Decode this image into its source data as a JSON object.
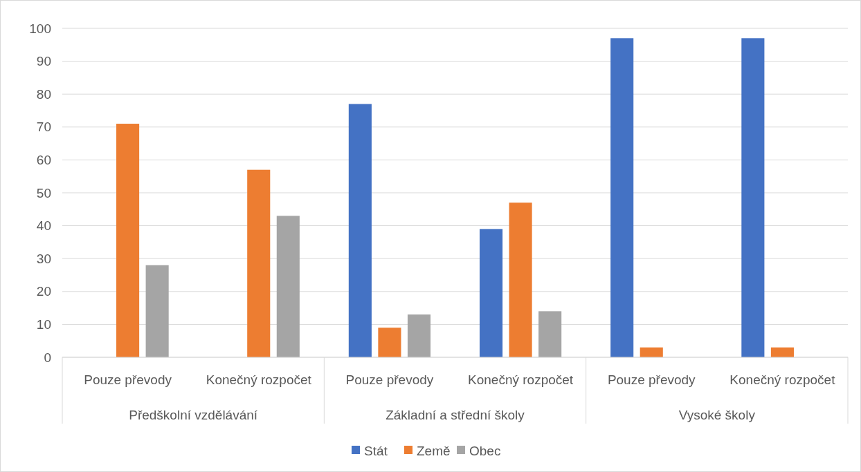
{
  "chart_data": {
    "type": "bar",
    "categories": [
      "Pouze převody",
      "Konečný rozpočet",
      "Pouze převody",
      "Konečný rozpočet",
      "Pouze převody",
      "Konečný rozpočet"
    ],
    "annotations": [
      "Předškolní vzdělávání",
      "Základní a střední školy",
      "Vysoké školy"
    ],
    "series": [
      {
        "name": "Stát",
        "color": "#4472c4",
        "values": [
          0,
          0,
          77,
          39,
          97,
          97
        ]
      },
      {
        "name": "Země",
        "color": "#ed7d31",
        "values": [
          71,
          57,
          9,
          47,
          3,
          3
        ]
      },
      {
        "name": "Obec",
        "color": "#a5a5a5",
        "values": [
          28,
          43,
          13,
          14,
          0,
          0
        ]
      }
    ],
    "ylim": [
      0,
      100
    ],
    "yticks": [
      0,
      10,
      20,
      30,
      40,
      50,
      60,
      70,
      80,
      90,
      100
    ],
    "grid": "y",
    "legend": "bottom"
  }
}
